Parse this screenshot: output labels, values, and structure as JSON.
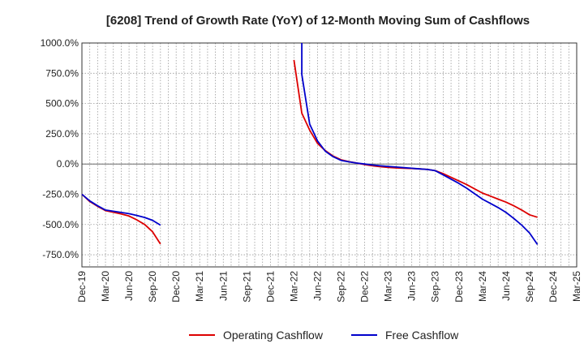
{
  "chart_data": {
    "type": "line",
    "title": "[6208]  Trend of Growth Rate (YoY) of 12-Month Moving Sum of Cashflows",
    "xlabel": "",
    "ylabel": "",
    "x_range": [
      "2019-12",
      "2025-03"
    ],
    "ylim": [
      -850,
      1000
    ],
    "y_ticks": [
      -750,
      -500,
      -250,
      0,
      250,
      500,
      750,
      1000
    ],
    "y_tick_labels": [
      "-750.0%",
      "-500.0%",
      "-250.0%",
      "0.0%",
      "250.0%",
      "500.0%",
      "750.0%",
      "1000.0%"
    ],
    "x_ticks": [
      "2019-12",
      "2020-03",
      "2020-06",
      "2020-09",
      "2020-12",
      "2021-03",
      "2021-06",
      "2021-09",
      "2021-12",
      "2022-03",
      "2022-06",
      "2022-09",
      "2022-12",
      "2023-03",
      "2023-06",
      "2023-09",
      "2023-12",
      "2024-03",
      "2024-06",
      "2024-09",
      "2024-12",
      "2025-03"
    ],
    "x_tick_labels": [
      "Dec-19",
      "Mar-20",
      "Jun-20",
      "Sep-20",
      "Dec-20",
      "Mar-21",
      "Jun-21",
      "Sep-21",
      "Dec-21",
      "Mar-22",
      "Jun-22",
      "Sep-22",
      "Dec-22",
      "Mar-23",
      "Jun-23",
      "Sep-23",
      "Dec-23",
      "Mar-24",
      "Jun-24",
      "Sep-24",
      "Dec-24",
      "Mar-25"
    ],
    "grid": true,
    "legend_position": "bottom",
    "series": [
      {
        "name": "Operating Cashflow",
        "color": "#dd0000",
        "points": [
          [
            "2019-12",
            -250
          ],
          [
            "2020-01",
            -310
          ],
          [
            "2020-02",
            -350
          ],
          [
            "2020-03",
            -385
          ],
          [
            "2020-04",
            -398
          ],
          [
            "2020-05",
            -412
          ],
          [
            "2020-06",
            -430
          ],
          [
            "2020-07",
            -462
          ],
          [
            "2020-08",
            -500
          ],
          [
            "2020-09",
            -560
          ],
          [
            "2020-10",
            -660
          ]
        ]
      },
      {
        "name": "Operating Cashflow",
        "color": "#dd0000",
        "points": [
          [
            "2022-03",
            860
          ],
          [
            "2022-04",
            420
          ],
          [
            "2022-05",
            280
          ],
          [
            "2022-06",
            170
          ],
          [
            "2022-07",
            110
          ],
          [
            "2022-08",
            65
          ],
          [
            "2022-09",
            35
          ],
          [
            "2022-10",
            20
          ],
          [
            "2022-11",
            8
          ],
          [
            "2022-12",
            -5
          ],
          [
            "2023-01",
            -15
          ],
          [
            "2023-02",
            -22
          ],
          [
            "2023-03",
            -28
          ],
          [
            "2023-04",
            -32
          ],
          [
            "2023-05",
            -35
          ],
          [
            "2023-06",
            -37
          ],
          [
            "2023-07",
            -40
          ],
          [
            "2023-08",
            -45
          ],
          [
            "2023-09",
            -55
          ],
          [
            "2023-10",
            -80
          ],
          [
            "2023-11",
            -110
          ],
          [
            "2023-12",
            -140
          ],
          [
            "2024-01",
            -170
          ],
          [
            "2024-02",
            -205
          ],
          [
            "2024-03",
            -240
          ],
          [
            "2024-04",
            -265
          ],
          [
            "2024-05",
            -290
          ],
          [
            "2024-06",
            -315
          ],
          [
            "2024-07",
            -345
          ],
          [
            "2024-08",
            -380
          ],
          [
            "2024-09",
            -420
          ],
          [
            "2024-10",
            -440
          ]
        ]
      },
      {
        "name": "Free Cashflow",
        "color": "#0000cc",
        "points": [
          [
            "2019-12",
            -250
          ],
          [
            "2020-01",
            -305
          ],
          [
            "2020-02",
            -345
          ],
          [
            "2020-03",
            -380
          ],
          [
            "2020-04",
            -390
          ],
          [
            "2020-05",
            -400
          ],
          [
            "2020-06",
            -410
          ],
          [
            "2020-07",
            -425
          ],
          [
            "2020-08",
            -442
          ],
          [
            "2020-09",
            -465
          ],
          [
            "2020-10",
            -505
          ]
        ]
      },
      {
        "name": "Free Cashflow",
        "color": "#0000cc",
        "points": [
          [
            "2022-04",
            1000
          ],
          [
            "2022-04",
            740
          ],
          [
            "2022-05",
            330
          ],
          [
            "2022-06",
            190
          ],
          [
            "2022-07",
            105
          ],
          [
            "2022-08",
            60
          ],
          [
            "2022-09",
            30
          ],
          [
            "2022-10",
            18
          ],
          [
            "2022-11",
            8
          ],
          [
            "2022-12",
            0
          ],
          [
            "2023-01",
            -8
          ],
          [
            "2023-02",
            -15
          ],
          [
            "2023-03",
            -20
          ],
          [
            "2023-04",
            -25
          ],
          [
            "2023-05",
            -30
          ],
          [
            "2023-06",
            -35
          ],
          [
            "2023-07",
            -40
          ],
          [
            "2023-08",
            -45
          ],
          [
            "2023-09",
            -55
          ],
          [
            "2023-10",
            -90
          ],
          [
            "2023-11",
            -125
          ],
          [
            "2023-12",
            -160
          ],
          [
            "2024-01",
            -200
          ],
          [
            "2024-02",
            -245
          ],
          [
            "2024-03",
            -290
          ],
          [
            "2024-04",
            -325
          ],
          [
            "2024-05",
            -360
          ],
          [
            "2024-06",
            -400
          ],
          [
            "2024-07",
            -450
          ],
          [
            "2024-08",
            -505
          ],
          [
            "2024-09",
            -570
          ],
          [
            "2024-10",
            -665
          ]
        ]
      }
    ],
    "legend": [
      {
        "name": "Operating Cashflow",
        "color": "#dd0000"
      },
      {
        "name": "Free Cashflow",
        "color": "#0000cc"
      }
    ]
  }
}
